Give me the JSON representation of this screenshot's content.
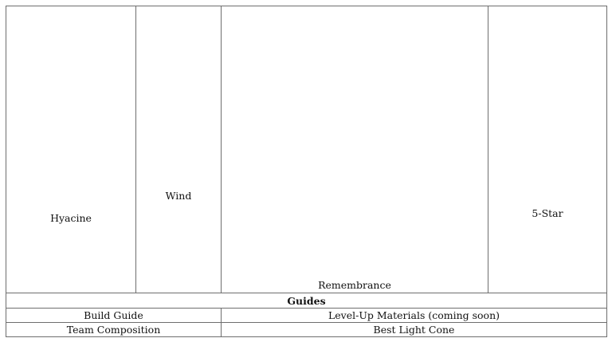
{
  "table": {
    "header_row": [
      "Hyacine",
      "Wind",
      "Remembrance",
      "5-Star"
    ],
    "section_title": "Guides",
    "rows": [
      [
        "Build Guide",
        "Level-Up Materials (coming soon)"
      ],
      [
        "Team Composition",
        "Best Light Cone"
      ]
    ]
  }
}
